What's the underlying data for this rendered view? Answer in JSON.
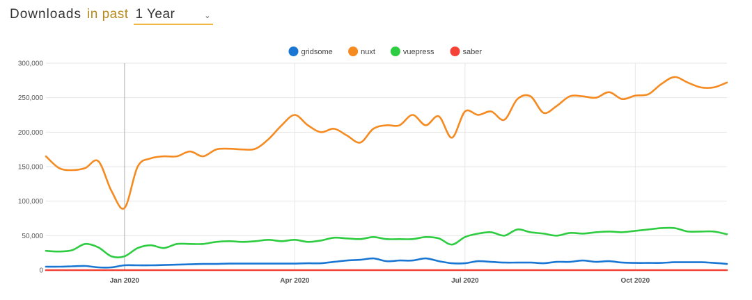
{
  "header": {
    "prefix": "Downloads",
    "connector": "in past",
    "period": "1 Year",
    "caret_icon": "chevron-down-icon"
  },
  "chart_data": {
    "type": "line",
    "title": "",
    "xlabel": "",
    "ylabel": "",
    "ylim": [
      0,
      300000
    ],
    "yticks": [
      0,
      50000,
      100000,
      150000,
      200000,
      250000,
      300000
    ],
    "ytick_labels": [
      "0",
      "50,000",
      "100,000",
      "150,000",
      "200,000",
      "250,000",
      "300,000"
    ],
    "xticks": [
      {
        "week": 6,
        "label": "Jan 2020"
      },
      {
        "week": 19,
        "label": "Apr 2020"
      },
      {
        "week": 32,
        "label": "Jul 2020"
      },
      {
        "week": 45,
        "label": "Oct 2020"
      }
    ],
    "x": [
      0,
      1,
      2,
      3,
      4,
      5,
      6,
      7,
      8,
      9,
      10,
      11,
      12,
      13,
      14,
      15,
      16,
      17,
      18,
      19,
      20,
      21,
      22,
      23,
      24,
      25,
      26,
      27,
      28,
      29,
      30,
      31,
      32,
      33,
      34,
      35,
      36,
      37,
      38,
      39,
      40,
      41,
      42,
      43,
      44,
      45,
      46,
      47,
      48,
      49,
      50,
      51,
      52
    ],
    "xlabel_unit": "weeks",
    "series": [
      {
        "name": "gridsome",
        "color": "#1976d2",
        "values": [
          5000,
          5000,
          5500,
          6000,
          4000,
          4000,
          7000,
          7000,
          7000,
          7500,
          8000,
          8500,
          9000,
          9000,
          9500,
          9500,
          9500,
          9500,
          9500,
          9500,
          10000,
          10000,
          12000,
          14000,
          15000,
          17000,
          13000,
          14000,
          14000,
          17000,
          13000,
          10000,
          10000,
          13000,
          12000,
          11000,
          11000,
          11000,
          10000,
          12000,
          12000,
          14000,
          12000,
          13000,
          11000,
          10500,
          10500,
          10500,
          11500,
          11500,
          11500,
          10500,
          9000
        ]
      },
      {
        "name": "nuxt",
        "color": "#f58a20",
        "values": [
          165000,
          148000,
          145000,
          148000,
          158000,
          115000,
          90000,
          150000,
          162000,
          165000,
          165000,
          172000,
          165000,
          175000,
          176000,
          175000,
          176000,
          190000,
          210000,
          225000,
          210000,
          200000,
          205000,
          195000,
          185000,
          205000,
          210000,
          210000,
          225000,
          210000,
          223000,
          192000,
          230000,
          225000,
          230000,
          218000,
          248000,
          252000,
          228000,
          238000,
          252000,
          252000,
          250000,
          258000,
          248000,
          253000,
          255000,
          270000,
          280000,
          272000,
          265000,
          265000,
          272000
        ]
      },
      {
        "name": "vuepress",
        "color": "#2ecc40",
        "values": [
          28000,
          27000,
          29000,
          38000,
          33000,
          20000,
          20000,
          32000,
          36000,
          32000,
          38000,
          38000,
          38000,
          41000,
          42000,
          41000,
          42000,
          44000,
          42000,
          44000,
          41000,
          43000,
          47000,
          46000,
          45000,
          48000,
          45000,
          45000,
          45000,
          48000,
          46000,
          37000,
          48000,
          53000,
          55000,
          50000,
          59000,
          55000,
          53000,
          50000,
          54000,
          53000,
          55000,
          56000,
          55000,
          57000,
          59000,
          61000,
          61000,
          56000,
          56000,
          56000,
          52000
        ]
      },
      {
        "name": "saber",
        "color": "#f44336",
        "values": [
          0,
          0,
          0,
          0,
          0,
          0,
          0,
          0,
          0,
          0,
          0,
          0,
          0,
          0,
          0,
          0,
          0,
          0,
          0,
          0,
          0,
          0,
          0,
          0,
          0,
          0,
          0,
          0,
          0,
          0,
          0,
          0,
          0,
          0,
          0,
          0,
          0,
          0,
          0,
          0,
          0,
          0,
          0,
          0,
          0,
          0,
          0,
          0,
          0,
          0,
          0,
          0,
          0
        ]
      }
    ],
    "legend": "top-center"
  }
}
